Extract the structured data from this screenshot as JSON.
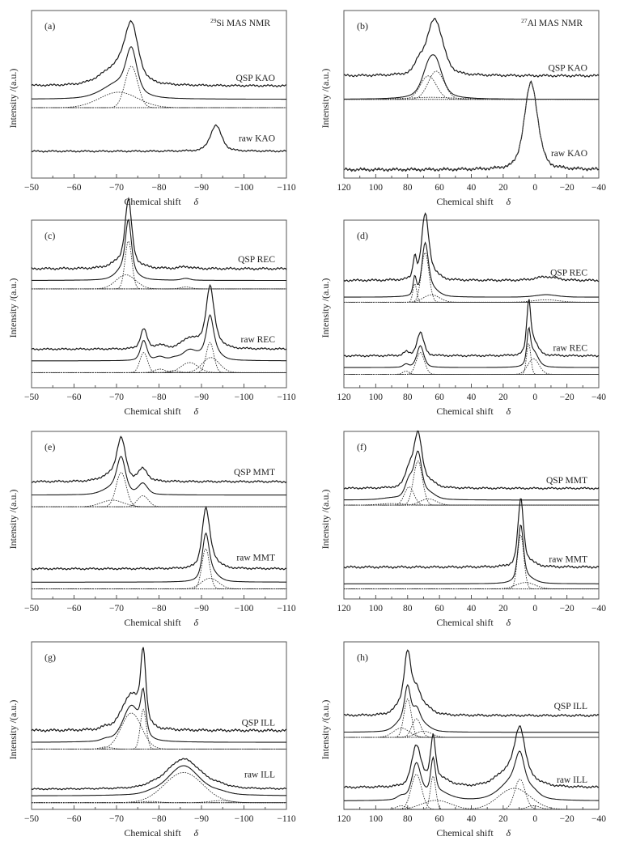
{
  "figure": {
    "y_axis_label": "Intensity /(a.u.)",
    "x_axis_label": "Chemical shift",
    "x_axis_symbol": "δ"
  },
  "chart_data": [
    {
      "type": "line",
      "panel": "(a)",
      "nucleus_label": {
        "sup": "29",
        "text": "Si MAS NMR"
      },
      "xlabel": "Chemical shift δ",
      "ylabel": "Intensity /(a.u.)",
      "xlim": [
        -50,
        -110
      ],
      "xticks": [
        -50,
        -60,
        -70,
        -80,
        -90,
        -100,
        -110
      ],
      "grid": false,
      "groups": [
        {
          "name": "QSP KAO",
          "measured_peaks": [
            {
              "x": -73.5,
              "height": 0.92,
              "width": 1.8
            },
            {
              "x": -70.5,
              "height": 0.35,
              "width": 4.5
            }
          ],
          "fitted_components": [
            {
              "x": -73.5,
              "height": 0.75,
              "width": 1.5
            },
            {
              "x": -70.5,
              "height": 0.28,
              "width": 4.5
            }
          ]
        },
        {
          "name": "raw KAO",
          "measured_peaks": [
            {
              "x": -93.4,
              "height": 0.55,
              "width": 1.6
            }
          ],
          "fitted_components": []
        }
      ]
    },
    {
      "type": "line",
      "panel": "(b)",
      "nucleus_label": {
        "sup": "27",
        "text": "Al MAS NMR"
      },
      "xlabel": "Chemical shift δ",
      "ylabel": "Intensity /(a.u.)",
      "xlim": [
        120,
        -40
      ],
      "xticks": [
        120,
        100,
        80,
        60,
        40,
        20,
        0,
        -20,
        -40
      ],
      "grid": false,
      "groups": [
        {
          "name": "QSP KAO",
          "measured_peaks": [
            {
              "x": 63,
              "height": 0.85,
              "width": 6
            },
            {
              "x": 73,
              "height": 0.15,
              "width": 3
            }
          ],
          "fitted_components": [
            {
              "x": 62,
              "height": 0.42,
              "width": 5
            },
            {
              "x": 67,
              "height": 0.35,
              "width": 5
            },
            {
              "x": 65,
              "height": 0.03,
              "width": 15
            }
          ]
        },
        {
          "name": "raw KAO",
          "measured_peaks": [
            {
              "x": 2.5,
              "height": 1.0,
              "width": 5
            }
          ],
          "fitted_components": [
            {
              "x": 2.5,
              "height": 1.0,
              "width": 5
            }
          ]
        }
      ]
    },
    {
      "type": "line",
      "panel": "(c)",
      "xlabel": "Chemical shift δ",
      "ylabel": "Intensity /(a.u.)",
      "xlim": [
        -50,
        -110
      ],
      "xticks": [
        -50,
        -60,
        -70,
        -80,
        -90,
        -100,
        -110
      ],
      "grid": false,
      "groups": [
        {
          "name": "QSP REC",
          "measured_peaks": [
            {
              "x": -72.8,
              "height": 0.95,
              "width": 0.9
            },
            {
              "x": -72,
              "height": 0.15,
              "width": 3
            },
            {
              "x": -86.3,
              "height": 0.03,
              "width": 1.5
            }
          ],
          "fitted_components": [
            {
              "x": -72.8,
              "height": 0.75,
              "width": 0.8
            },
            {
              "x": -72.2,
              "height": 0.22,
              "width": 2.3
            },
            {
              "x": -86.3,
              "height": 0.03,
              "width": 1.2
            }
          ]
        },
        {
          "name": "raw REC",
          "measured_peaks": [
            {
              "x": -76.4,
              "height": 0.4,
              "width": 0.9
            },
            {
              "x": -80.2,
              "height": 0.07,
              "width": 1.5
            },
            {
              "x": -87.2,
              "height": 0.2,
              "width": 2.2
            },
            {
              "x": -92,
              "height": 0.95,
              "width": 1.0
            },
            {
              "x": -92.2,
              "height": 0.3,
              "width": 2.2
            }
          ],
          "fitted_components": [
            {
              "x": -76.4,
              "height": 0.4,
              "width": 0.9
            },
            {
              "x": -80.2,
              "height": 0.07,
              "width": 1.3
            },
            {
              "x": -83.5,
              "height": 0.04,
              "width": 1.2
            },
            {
              "x": -87.2,
              "height": 0.2,
              "width": 2.0
            },
            {
              "x": -92,
              "height": 0.6,
              "width": 0.9
            },
            {
              "x": -92.2,
              "height": 0.3,
              "width": 2.0
            }
          ]
        }
      ]
    },
    {
      "type": "line",
      "panel": "(d)",
      "xlabel": "Chemical shift δ",
      "ylabel": "Intensity /(a.u.)",
      "xlim": [
        120,
        -40
      ],
      "xticks": [
        120,
        100,
        80,
        60,
        40,
        20,
        0,
        -20,
        -40
      ],
      "grid": false,
      "groups": [
        {
          "name": "QSP REC",
          "measured_peaks": [
            {
              "x": 69,
              "height": 1.0,
              "width": 2.6
            },
            {
              "x": 75.5,
              "height": 0.35,
              "width": 1.3
            },
            {
              "x": 65,
              "height": 0.12,
              "width": 5
            },
            {
              "x": -7,
              "height": 0.06,
              "width": 8
            }
          ],
          "fitted_components": [
            {
              "x": 69,
              "height": 0.8,
              "width": 2.4
            },
            {
              "x": 75.5,
              "height": 0.3,
              "width": 1.2
            },
            {
              "x": 65,
              "height": 0.12,
              "width": 5
            },
            {
              "x": -7,
              "height": 0.04,
              "width": 8
            }
          ]
        },
        {
          "name": "raw REC",
          "measured_peaks": [
            {
              "x": 72,
              "height": 0.45,
              "width": 2.6
            },
            {
              "x": 81,
              "height": 0.07,
              "width": 2
            },
            {
              "x": 4,
              "height": 0.9,
              "width": 1.4
            },
            {
              "x": 1.5,
              "height": 0.3,
              "width": 3.5
            }
          ],
          "fitted_components": [
            {
              "x": 72,
              "height": 0.42,
              "width": 2.6
            },
            {
              "x": 81,
              "height": 0.06,
              "width": 2
            },
            {
              "x": 4,
              "height": 0.6,
              "width": 1.3
            },
            {
              "x": 1,
              "height": 0.3,
              "width": 3.5
            }
          ]
        }
      ]
    },
    {
      "type": "line",
      "panel": "(e)",
      "xlabel": "Chemical shift δ",
      "ylabel": "Intensity /(a.u.)",
      "xlim": [
        -50,
        -110
      ],
      "xticks": [
        -50,
        -60,
        -70,
        -80,
        -90,
        -100,
        -110
      ],
      "grid": false,
      "groups": [
        {
          "name": "QSP MMT",
          "measured_peaks": [
            {
              "x": -71.1,
              "height": 0.72,
              "width": 1.2
            },
            {
              "x": -76.2,
              "height": 0.22,
              "width": 1.3
            },
            {
              "x": -69,
              "height": 0.12,
              "width": 2.8
            }
          ],
          "fitted_components": [
            {
              "x": -71.1,
              "height": 0.62,
              "width": 1.2
            },
            {
              "x": -76.2,
              "height": 0.2,
              "width": 1.3
            },
            {
              "x": -69,
              "height": 0.12,
              "width": 2.6
            }
          ]
        },
        {
          "name": "raw MMT",
          "measured_peaks": [
            {
              "x": -91,
              "height": 0.95,
              "width": 1.0
            },
            {
              "x": -92,
              "height": 0.22,
              "width": 2.0
            }
          ],
          "fitted_components": [
            {
              "x": -91,
              "height": 0.75,
              "width": 0.9
            },
            {
              "x": -92,
              "height": 0.2,
              "width": 2.0
            }
          ]
        }
      ]
    },
    {
      "type": "line",
      "panel": "(f)",
      "xlabel": "Chemical shift δ",
      "ylabel": "Intensity /(a.u.)",
      "xlim": [
        120,
        -40
      ],
      "xticks": [
        120,
        100,
        80,
        60,
        40,
        20,
        0,
        -20,
        -40
      ],
      "grid": false,
      "groups": [
        {
          "name": "QSP MMT",
          "measured_peaks": [
            {
              "x": 73.5,
              "height": 1.0,
              "width": 3
            },
            {
              "x": 79,
              "height": 0.35,
              "width": 3
            },
            {
              "x": 67,
              "height": 0.12,
              "width": 5
            }
          ],
          "fitted_components": [
            {
              "x": 73.5,
              "height": 0.85,
              "width": 2.8
            },
            {
              "x": 79,
              "height": 0.35,
              "width": 3
            },
            {
              "x": 67,
              "height": 0.12,
              "width": 5
            },
            {
              "x": 90,
              "height": 0.03,
              "width": 8
            }
          ]
        },
        {
          "name": "raw MMT",
          "measured_peaks": [
            {
              "x": 9,
              "height": 1.0,
              "width": 2
            },
            {
              "x": 6,
              "height": 0.1,
              "width": 6
            }
          ],
          "fitted_components": [
            {
              "x": 9,
              "height": 0.85,
              "width": 2
            },
            {
              "x": 6,
              "height": 0.1,
              "width": 6
            }
          ]
        }
      ]
    },
    {
      "type": "line",
      "panel": "(g)",
      "xlabel": "Chemical shift δ",
      "ylabel": "Intensity /(a.u.)",
      "xlim": [
        -50,
        -110
      ],
      "xticks": [
        -50,
        -60,
        -70,
        -80,
        -90,
        -100,
        -110
      ],
      "grid": false,
      "groups": [
        {
          "name": "QSP ILL",
          "measured_peaks": [
            {
              "x": -76.3,
              "height": 0.95,
              "width": 0.7
            },
            {
              "x": -73.5,
              "height": 0.5,
              "width": 2.6
            },
            {
              "x": -67.5,
              "height": 0.03,
              "width": 1.3
            }
          ],
          "fitted_components": [
            {
              "x": -76.3,
              "height": 0.55,
              "width": 0.7
            },
            {
              "x": -73.5,
              "height": 0.5,
              "width": 2.4
            },
            {
              "x": -67.5,
              "height": 0.03,
              "width": 1.3
            }
          ]
        },
        {
          "name": "raw ILL",
          "measured_peaks": [
            {
              "x": -85.8,
              "height": 0.72,
              "width": 4.8
            },
            {
              "x": -94.5,
              "height": 0.05,
              "width": 2.5
            },
            {
              "x": -78,
              "height": 0.03,
              "width": 2
            }
          ],
          "fitted_components": [
            {
              "x": -85.8,
              "height": 0.72,
              "width": 4.5
            },
            {
              "x": -94.5,
              "height": 0.05,
              "width": 2.5
            },
            {
              "x": -78,
              "height": 0.03,
              "width": 2
            }
          ]
        }
      ]
    },
    {
      "type": "line",
      "panel": "(h)",
      "xlabel": "Chemical shift δ",
      "ylabel": "Intensity /(a.u.)",
      "xlim": [
        120,
        -40
      ],
      "xticks": [
        120,
        100,
        80,
        60,
        40,
        20,
        0,
        -20,
        -40
      ],
      "grid": false,
      "groups": [
        {
          "name": "QSP ILL",
          "measured_peaks": [
            {
              "x": 80,
              "height": 0.9,
              "width": 2.5
            },
            {
              "x": 74.5,
              "height": 0.32,
              "width": 3
            },
            {
              "x": 70,
              "height": 0.13,
              "width": 6
            },
            {
              "x": 84,
              "height": 0.15,
              "width": 5
            }
          ],
          "fitted_components": [
            {
              "x": 80,
              "height": 0.62,
              "width": 2.3
            },
            {
              "x": 74.5,
              "height": 0.3,
              "width": 2.8
            },
            {
              "x": 70,
              "height": 0.1,
              "width": 5
            },
            {
              "x": 84,
              "height": 0.15,
              "width": 5
            }
          ]
        },
        {
          "name": "raw ILL",
          "measured_peaks": [
            {
              "x": 74.5,
              "height": 0.65,
              "width": 3.5
            },
            {
              "x": 64,
              "height": 0.7,
              "width": 1.8
            },
            {
              "x": 9.5,
              "height": 0.7,
              "width": 3.5
            },
            {
              "x": 13,
              "height": 0.35,
              "width": 11
            },
            {
              "x": 62,
              "height": 0.15,
              "width": 9
            }
          ],
          "fitted_components": [
            {
              "x": 74.5,
              "height": 0.58,
              "width": 3.3
            },
            {
              "x": 64,
              "height": 0.55,
              "width": 1.7
            },
            {
              "x": 9.5,
              "height": 0.5,
              "width": 3.3
            },
            {
              "x": 13,
              "height": 0.35,
              "width": 10
            },
            {
              "x": 62,
              "height": 0.15,
              "width": 9
            },
            {
              "x": 84,
              "height": 0.06,
              "width": 3
            },
            {
              "x": 1,
              "height": 0.06,
              "width": 4
            }
          ]
        }
      ]
    }
  ]
}
